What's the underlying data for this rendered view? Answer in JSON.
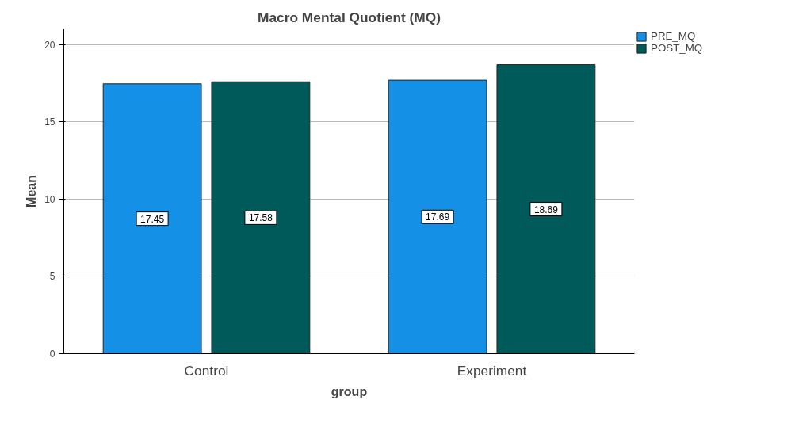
{
  "chart_data": {
    "type": "bar",
    "title": "Macro Mental Quotient (MQ)",
    "xlabel": "group",
    "ylabel": "Mean",
    "categories": [
      "Control",
      "Experiment"
    ],
    "series": [
      {
        "name": "PRE_MQ",
        "color": "#1490e6",
        "values": [
          17.45,
          17.69
        ]
      },
      {
        "name": "POST_MQ",
        "color": "#005a5a",
        "values": [
          17.58,
          18.69
        ]
      }
    ],
    "ylim": [
      0,
      21
    ],
    "yticks": [
      0,
      5,
      10,
      15,
      20
    ],
    "grid": "y",
    "legend": "top right",
    "data_labels": true
  }
}
